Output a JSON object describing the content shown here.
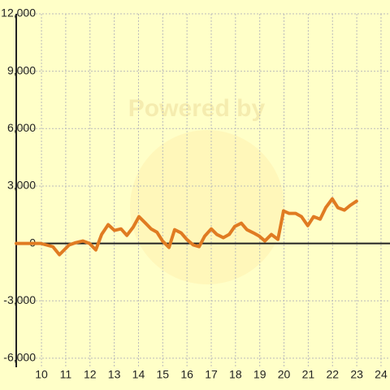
{
  "chart_data": {
    "type": "line",
    "watermark": "Powered by",
    "x": [
      8.96,
      9.97,
      10.47,
      10.74,
      11.14,
      11.41,
      11.71,
      11.98,
      12.24,
      12.48,
      12.75,
      13.01,
      13.28,
      13.52,
      13.78,
      14.02,
      14.29,
      14.52,
      14.76,
      14.99,
      15.26,
      15.49,
      15.76,
      15.99,
      16.26,
      16.5,
      16.73,
      17.0,
      17.23,
      17.5,
      17.74,
      17.97,
      18.24,
      18.47,
      18.74,
      18.98,
      19.21,
      19.48,
      19.75,
      19.98,
      20.21,
      20.48,
      20.72,
      20.98,
      21.22,
      21.49,
      21.72,
      21.99,
      22.22,
      22.49,
      22.73,
      22.99
    ],
    "values": [
      0,
      0,
      -170,
      -590,
      -80,
      40,
      130,
      0,
      -340,
      470,
      980,
      680,
      760,
      420,
      850,
      1400,
      1060,
      760,
      590,
      130,
      -210,
      720,
      550,
      210,
      -80,
      -170,
      380,
      760,
      470,
      300,
      470,
      890,
      1060,
      720,
      550,
      380,
      130,
      470,
      210,
      1700,
      1570,
      1570,
      1400,
      930,
      1400,
      1270,
      1870,
      2330,
      1870,
      1740,
      1990,
      2210
    ],
    "color": "#e07b22",
    "xlim": [
      8.96,
      24.37
    ],
    "ylim": [
      -6470,
      12000
    ],
    "xticks": [
      10,
      11,
      12,
      13,
      14,
      15,
      16,
      17,
      18,
      19,
      20,
      21,
      22,
      23,
      24
    ],
    "yticks": [
      {
        "value": -6000,
        "label": "-6,000"
      },
      {
        "value": -3000,
        "label": "-3,000"
      },
      0,
      {
        "value": 3000,
        "label": "3,000"
      },
      {
        "value": 6000,
        "label": "6,000"
      },
      {
        "value": 9000,
        "label": "9,000"
      },
      {
        "value": 12000,
        "label": "12,000"
      }
    ],
    "grid": true
  }
}
